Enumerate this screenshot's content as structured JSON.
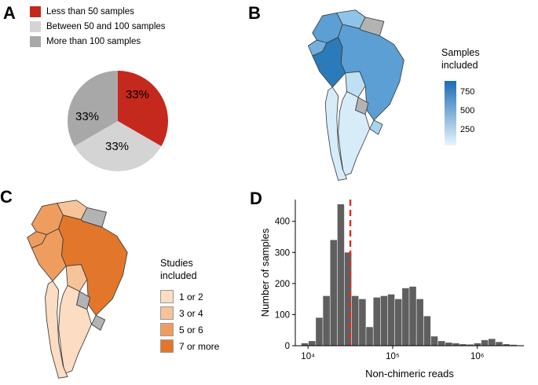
{
  "panels": {
    "a": {
      "label": "A"
    },
    "b": {
      "label": "B"
    },
    "c": {
      "label": "C"
    },
    "d": {
      "label": "D"
    }
  },
  "legend_a": {
    "items": [
      {
        "label": "Less than 50 samples",
        "color": "#c5281c"
      },
      {
        "label": "Between 50 and 100 samples",
        "color": "#d4d4d4"
      },
      {
        "label": "More than 100 samples",
        "color": "#a8a8a8"
      }
    ]
  },
  "legend_b": {
    "title_line1": "Samples",
    "title_line2": "included",
    "ticks": [
      "750",
      "500",
      "250"
    ],
    "gradient_top": "#1c6cb5",
    "gradient_bottom": "#e8f4fb"
  },
  "legend_c": {
    "title_line1": "Studies",
    "title_line2": "included",
    "items": [
      {
        "label": "1 or 2",
        "color": "#fcdcc2"
      },
      {
        "label": "3 or 4",
        "color": "#f7c399"
      },
      {
        "label": "5 or 6",
        "color": "#ef9d5f"
      },
      {
        "label": "7 or more",
        "color": "#e2772c"
      }
    ]
  },
  "maps": {
    "no_data_color": "#b3b3b3",
    "b": {
      "fills": {
        "colombia": "#5b9fd4",
        "venezuela": "#8ec4e8",
        "guianas": "#b3b3b3",
        "ecuador": "#74b0dc",
        "peru": "#2b7bba",
        "brazil": "#5b9fd4",
        "bolivia": "#bfe0f2",
        "paraguay": "#b3b3b3",
        "uruguay": "#a8d4ef",
        "argentina": "#d7ecf9",
        "chile": "#d7ecf9"
      }
    },
    "c": {
      "fills": {
        "colombia": "#ef9d5f",
        "venezuela": "#f7c399",
        "guianas": "#b3b3b3",
        "ecuador": "#ef9d5f",
        "peru": "#ef9d5f",
        "brazil": "#e2772c",
        "bolivia": "#f7c399",
        "paraguay": "#b3b3b3",
        "uruguay": "#b3b3b3",
        "argentina": "#fcdcc2",
        "chile": "#fcdcc2"
      }
    }
  },
  "chart_data": [
    {
      "type": "pie",
      "panel": "A",
      "labels": [
        "Less than 50 samples",
        "Between 50 and 100 samples",
        "More than 100 samples"
      ],
      "values": [
        33.3,
        33.3,
        33.3
      ],
      "data_labels": [
        "33%",
        "33%",
        "33%"
      ],
      "colors": [
        "#c5281c",
        "#d4d4d4",
        "#a8a8a8"
      ],
      "start_angle_deg": 0,
      "direction": "clockwise",
      "legend_position": "top-left"
    },
    {
      "type": "choropleth",
      "panel": "B",
      "legend_title": "Samples included",
      "scale": {
        "kind": "continuous",
        "ticks": [
          250,
          500,
          750
        ],
        "color_low": "#e8f4fb",
        "color_high": "#1c6cb5"
      },
      "regions": [
        {
          "name": "Peru",
          "value": 800
        },
        {
          "name": "Brazil",
          "value": 520
        },
        {
          "name": "Colombia",
          "value": 500
        },
        {
          "name": "Ecuador",
          "value": 420
        },
        {
          "name": "Venezuela",
          "value": 300
        },
        {
          "name": "Bolivia",
          "value": 180
        },
        {
          "name": "Uruguay",
          "value": 200
        },
        {
          "name": "Argentina",
          "value": 80
        },
        {
          "name": "Chile",
          "value": 80
        },
        {
          "name": "Paraguay",
          "value": null
        },
        {
          "name": "Guianas",
          "value": null
        }
      ]
    },
    {
      "type": "choropleth",
      "panel": "C",
      "legend_title": "Studies included",
      "scale": {
        "kind": "categorical",
        "categories": [
          "1 or 2",
          "3 or 4",
          "5 or 6",
          "7 or more"
        ]
      },
      "regions": [
        {
          "name": "Brazil",
          "category": "7 or more"
        },
        {
          "name": "Peru",
          "category": "5 or 6"
        },
        {
          "name": "Colombia",
          "category": "5 or 6"
        },
        {
          "name": "Ecuador",
          "category": "5 or 6"
        },
        {
          "name": "Venezuela",
          "category": "3 or 4"
        },
        {
          "name": "Bolivia",
          "category": "3 or 4"
        },
        {
          "name": "Argentina",
          "category": "1 or 2"
        },
        {
          "name": "Chile",
          "category": "1 or 2"
        },
        {
          "name": "Paraguay",
          "category": null
        },
        {
          "name": "Uruguay",
          "category": null
        },
        {
          "name": "Guianas",
          "category": null
        }
      ]
    },
    {
      "type": "bar",
      "subtype": "histogram",
      "panel": "D",
      "xlabel": "Non-chimeric reads",
      "ylabel": "Number of samples",
      "x_scale": "log10",
      "x_tick_log10": [
        4,
        5,
        6
      ],
      "x_tick_labels": [
        "10⁴",
        "10⁵",
        "10⁶"
      ],
      "y_ticks": [
        0,
        100,
        200,
        300,
        400
      ],
      "xlim_log10": [
        3.85,
        6.55
      ],
      "ylim": [
        0,
        470
      ],
      "bins_log10_start": 3.92,
      "bin_width_log10": 0.085,
      "counts": [
        8,
        15,
        90,
        160,
        340,
        455,
        300,
        160,
        150,
        60,
        155,
        160,
        165,
        150,
        185,
        190,
        150,
        95,
        30,
        15,
        10,
        8,
        5,
        4,
        8,
        18,
        22,
        12,
        5,
        3
      ],
      "bar_color": "#5f5f5f",
      "vline": {
        "x_log10": 4.5,
        "color": "#dd2c1e",
        "style": "dashed"
      }
    }
  ]
}
